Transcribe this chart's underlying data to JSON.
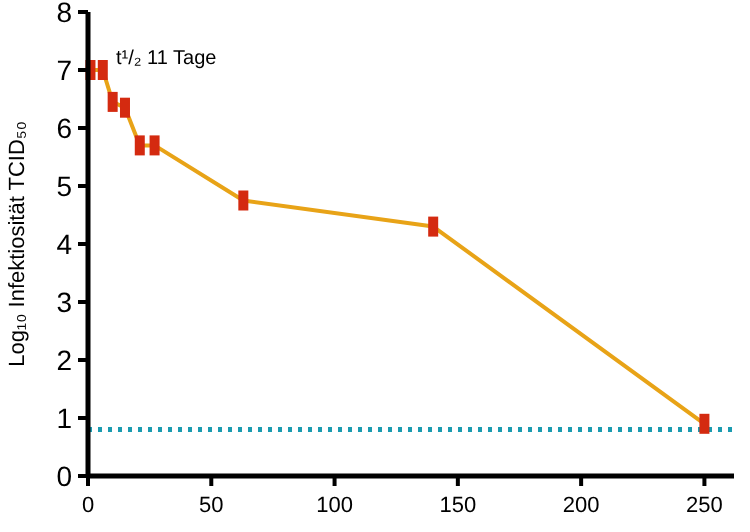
{
  "chart_data": {
    "type": "line",
    "ylabel": "Log₁₀ Infektiosität TCID₅₀",
    "annotations": [
      "t¹/₂ 11 Tage"
    ],
    "x": [
      1,
      6,
      10,
      15,
      21,
      27,
      63,
      140,
      250
    ],
    "series": [
      {
        "color": "#e8a317",
        "colors": [
          "#d42a10",
          "#d42a10",
          "#d42a10",
          "#d42a10",
          "#d42a10",
          "#d42a10",
          "#d42a10",
          "#d42a10",
          "#d42a10"
        ],
        "values": [
          7.0,
          7.0,
          6.45,
          6.35,
          5.7,
          5.7,
          4.75,
          4.3,
          0.9
        ]
      }
    ],
    "xlim": [
      0,
      262
    ],
    "xticks": [
      0,
      50,
      100,
      150,
      200,
      250
    ],
    "ylim": [
      0,
      8
    ],
    "yticks": [
      0,
      1,
      2,
      3,
      4,
      5,
      6,
      7,
      8
    ],
    "marker": "square",
    "line_style": "solid",
    "grid": false,
    "ref_lines": [
      {
        "axis": "y",
        "value": 0.8,
        "color": "#1a9bb0",
        "line_style": "dotted"
      }
    ]
  }
}
